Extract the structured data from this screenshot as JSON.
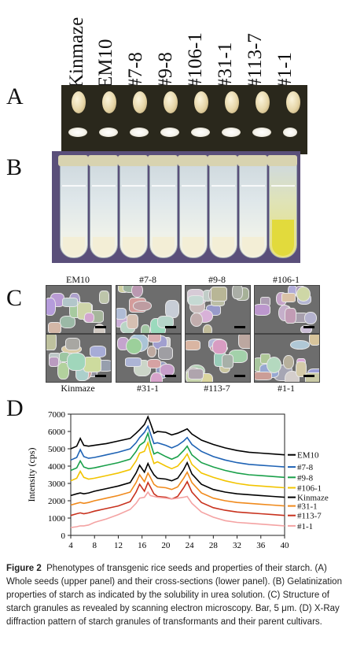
{
  "panels": {
    "a": "A",
    "b": "B",
    "c": "C",
    "d": "D"
  },
  "cultivars": [
    "Kinmaze",
    "EM10",
    "#7-8",
    "#9-8",
    "#106-1",
    "#31-1",
    "#113-7",
    "#1-1"
  ],
  "sem": {
    "top": [
      "EM10",
      "#7-8",
      "#9-8",
      "#106-1"
    ],
    "bottom": [
      "Kinmaze",
      "#31-1",
      "#113-7",
      "#1-1"
    ]
  },
  "chart_data": {
    "type": "line",
    "title": "",
    "xlabel": "",
    "ylabel": "Intensity (cps)",
    "xlim": [
      4,
      40
    ],
    "ylim": [
      0,
      7000
    ],
    "xticks": [
      4,
      8,
      12,
      16,
      20,
      24,
      28,
      32,
      36,
      40
    ],
    "yticks": [
      0,
      1000,
      2000,
      3000,
      4000,
      5000,
      6000,
      7000
    ],
    "legend_position": "right",
    "x": [
      4,
      5,
      5.6,
      6.2,
      7,
      8,
      10,
      12,
      14,
      15,
      15.6,
      16.4,
      17,
      17.4,
      18,
      18.6,
      20,
      21,
      22,
      23,
      23.6,
      24.4,
      26,
      28,
      30,
      32,
      34,
      36,
      38,
      40
    ],
    "series": [
      {
        "name": "EM10",
        "color": "#000000",
        "values": [
          5000,
          5150,
          5600,
          5200,
          5150,
          5200,
          5300,
          5450,
          5600,
          5900,
          6100,
          6400,
          6850,
          6500,
          5900,
          6000,
          5950,
          5800,
          5900,
          6050,
          6150,
          5850,
          5500,
          5250,
          5050,
          4900,
          4800,
          4750,
          4700,
          4650
        ]
      },
      {
        "name": "#7-8",
        "color": "#1f63b5",
        "values": [
          4350,
          4500,
          4950,
          4550,
          4450,
          4500,
          4650,
          4800,
          5000,
          5350,
          5650,
          5950,
          6300,
          5900,
          5300,
          5350,
          5200,
          5050,
          5200,
          5450,
          5650,
          5250,
          4850,
          4550,
          4350,
          4200,
          4100,
          4050,
          4000,
          3950
        ]
      },
      {
        "name": "#9-8",
        "color": "#1aa04a",
        "values": [
          3750,
          3900,
          4300,
          3950,
          3850,
          3900,
          4050,
          4200,
          4400,
          4850,
          5200,
          5400,
          5900,
          5350,
          4700,
          4800,
          4550,
          4400,
          4550,
          4900,
          5150,
          4650,
          4200,
          3950,
          3750,
          3600,
          3500,
          3450,
          3400,
          3350
        ]
      },
      {
        "name": "#106-1",
        "color": "#f2c400",
        "values": [
          3150,
          3300,
          3700,
          3350,
          3250,
          3300,
          3450,
          3600,
          3800,
          4300,
          4750,
          4850,
          5350,
          4800,
          4150,
          4250,
          4000,
          3850,
          4000,
          4400,
          4700,
          4100,
          3600,
          3350,
          3150,
          3000,
          2900,
          2850,
          2800,
          2750
        ]
      },
      {
        "name": "Kinmaze",
        "color": "#000000",
        "values": [
          2300,
          2400,
          2450,
          2400,
          2450,
          2550,
          2700,
          2850,
          3050,
          3600,
          4050,
          3650,
          4150,
          3850,
          3500,
          3300,
          3250,
          3150,
          3300,
          3800,
          4200,
          3550,
          2950,
          2650,
          2500,
          2400,
          2350,
          2300,
          2250,
          2200
        ]
      },
      {
        "name": "#31-1",
        "color": "#f08a1c",
        "values": [
          1750,
          1850,
          1900,
          1850,
          1900,
          2000,
          2150,
          2300,
          2500,
          3050,
          3500,
          3100,
          3600,
          3350,
          2950,
          2800,
          2750,
          2650,
          2800,
          3300,
          3650,
          3050,
          2450,
          2150,
          2000,
          1900,
          1850,
          1800,
          1750,
          1700
        ]
      },
      {
        "name": "#113-7",
        "color": "#c8321e",
        "values": [
          1150,
          1250,
          1300,
          1250,
          1300,
          1400,
          1550,
          1700,
          1950,
          2500,
          2950,
          2550,
          3050,
          2800,
          2400,
          2250,
          2200,
          2100,
          2250,
          2750,
          3100,
          2500,
          1900,
          1600,
          1450,
          1350,
          1300,
          1250,
          1200,
          1150
        ]
      },
      {
        "name": "#1-1",
        "color": "#f4a3a3",
        "values": [
          450,
          500,
          550,
          550,
          600,
          750,
          950,
          1200,
          1500,
          1850,
          2150,
          2200,
          2500,
          2300,
          2250,
          2200,
          2150,
          2100,
          2150,
          2200,
          2250,
          1850,
          1350,
          1050,
          850,
          750,
          700,
          650,
          600,
          550
        ]
      }
    ]
  },
  "caption": {
    "heading": "Figure 2",
    "body": "Phenotypes of transgenic rice seeds and properties of their starch. (A) Whole seeds (upper panel) and their cross-sections (lower panel). (B) Gelatinization properties of starch as indicated by the solubility in urea solution. (C) Structure of starch granules as revealed by scanning electron microscopy. Bar, 5 μm. (D) X-Ray diffraction pattern of starch granules of transformants and their parent cultivars."
  }
}
